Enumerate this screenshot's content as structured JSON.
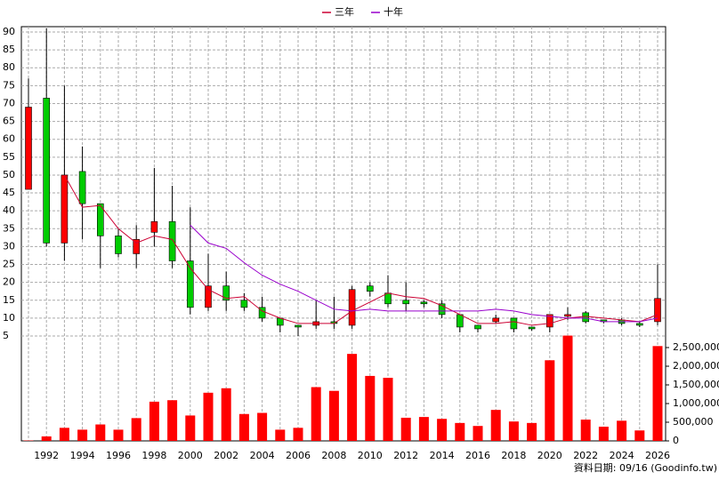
{
  "chart_data": {
    "type": "candlestick",
    "categories": [
      null,
      "1992",
      null,
      "1994",
      null,
      "1996",
      null,
      "1998",
      null,
      "2000",
      null,
      "2002",
      null,
      "2004",
      null,
      "2006",
      null,
      "2008",
      null,
      "2010",
      null,
      "2012",
      null,
      "2014",
      null,
      "2016",
      null,
      "2018",
      null,
      "2020",
      null,
      "2022",
      null,
      "2024",
      null,
      "2026"
    ],
    "open": [
      46,
      71.5,
      31,
      51,
      42,
      33,
      28,
      34,
      37,
      26,
      13,
      19,
      15,
      13,
      10,
      8,
      8,
      9,
      8,
      19,
      17,
      15,
      14.5,
      14,
      11,
      8,
      9,
      10,
      7.5,
      7.5,
      10.5,
      11.5,
      9.5,
      9.5,
      8.5,
      9
    ],
    "high": [
      77,
      91,
      75,
      58,
      42,
      35,
      36,
      52,
      47,
      41,
      28,
      23,
      17,
      16,
      10,
      8,
      15,
      16,
      19,
      20,
      22,
      20,
      15,
      15,
      11,
      8,
      11,
      10,
      7.5,
      11,
      13,
      12,
      9.5,
      10,
      9,
      25
    ],
    "low": [
      46,
      30,
      26,
      32,
      24,
      27,
      24,
      30,
      24,
      11,
      12,
      12,
      12,
      9,
      6,
      5,
      7,
      7,
      7,
      16,
      13,
      12,
      13,
      10,
      6,
      6,
      8.5,
      6,
      6.5,
      6,
      9.5,
      8.5,
      8.5,
      8,
      7.5,
      8
    ],
    "close": [
      69,
      31,
      50,
      42,
      33,
      28,
      32,
      37,
      26,
      13,
      19,
      15,
      13,
      10,
      8,
      7.5,
      9,
      8.5,
      18,
      17.5,
      14,
      14,
      14,
      11,
      7.5,
      7,
      10,
      7,
      7,
      11,
      11,
      9,
      9,
      8.5,
      8,
      15.5
    ],
    "up_color": "#ff0000",
    "down_color": "#00cc00",
    "series": [
      {
        "name": "三年",
        "color": "#cc0033",
        "values": [
          null,
          null,
          50,
          41,
          41.5,
          35,
          31,
          33,
          32,
          24,
          18,
          15.5,
          16,
          12,
          10,
          8.5,
          8.5,
          8.5,
          12,
          14.5,
          17,
          16,
          15.5,
          13.5,
          11,
          8.5,
          8.5,
          9,
          8,
          8.5,
          10,
          10.5,
          10,
          9.5,
          9,
          11
        ]
      },
      {
        "name": "十年",
        "color": "#9900cc",
        "values": [
          null,
          null,
          null,
          null,
          null,
          null,
          null,
          null,
          null,
          36,
          31,
          29.5,
          25.5,
          22,
          19.5,
          17.5,
          15,
          12.5,
          12,
          12.5,
          12,
          12,
          12,
          12,
          12,
          12,
          12.5,
          12,
          11,
          10.5,
          10,
          10,
          9,
          9,
          9,
          10
        ]
      }
    ],
    "ylim": [
      5,
      90
    ],
    "yticks": [
      5,
      10,
      15,
      20,
      25,
      30,
      35,
      40,
      45,
      50,
      55,
      60,
      65,
      70,
      75,
      80,
      85,
      90
    ],
    "grid": true,
    "volume": {
      "color": "#ff0000",
      "values": [
        10000,
        120000,
        350000,
        300000,
        440000,
        300000,
        610000,
        1050000,
        1090000,
        680000,
        1290000,
        1410000,
        720000,
        750000,
        300000,
        350000,
        1440000,
        1340000,
        2330000,
        1740000,
        1690000,
        620000,
        640000,
        590000,
        480000,
        400000,
        830000,
        520000,
        480000,
        2160000,
        2820000,
        570000,
        380000,
        540000,
        280000,
        2540000
      ],
      "ylim": [
        0,
        2500000
      ],
      "yticks": [
        0,
        {
          "value": 500000,
          "label": "500,000"
        },
        {
          "value": 1000000,
          "label": "1,000,000"
        },
        {
          "value": 1500000,
          "label": "1,500,000"
        },
        {
          "value": 2000000,
          "label": "2,000,000"
        },
        {
          "value": 2500000,
          "label": "2,500,000"
        }
      ]
    },
    "footer": "資料日期: 09/16  (Goodinfo.tw)"
  }
}
